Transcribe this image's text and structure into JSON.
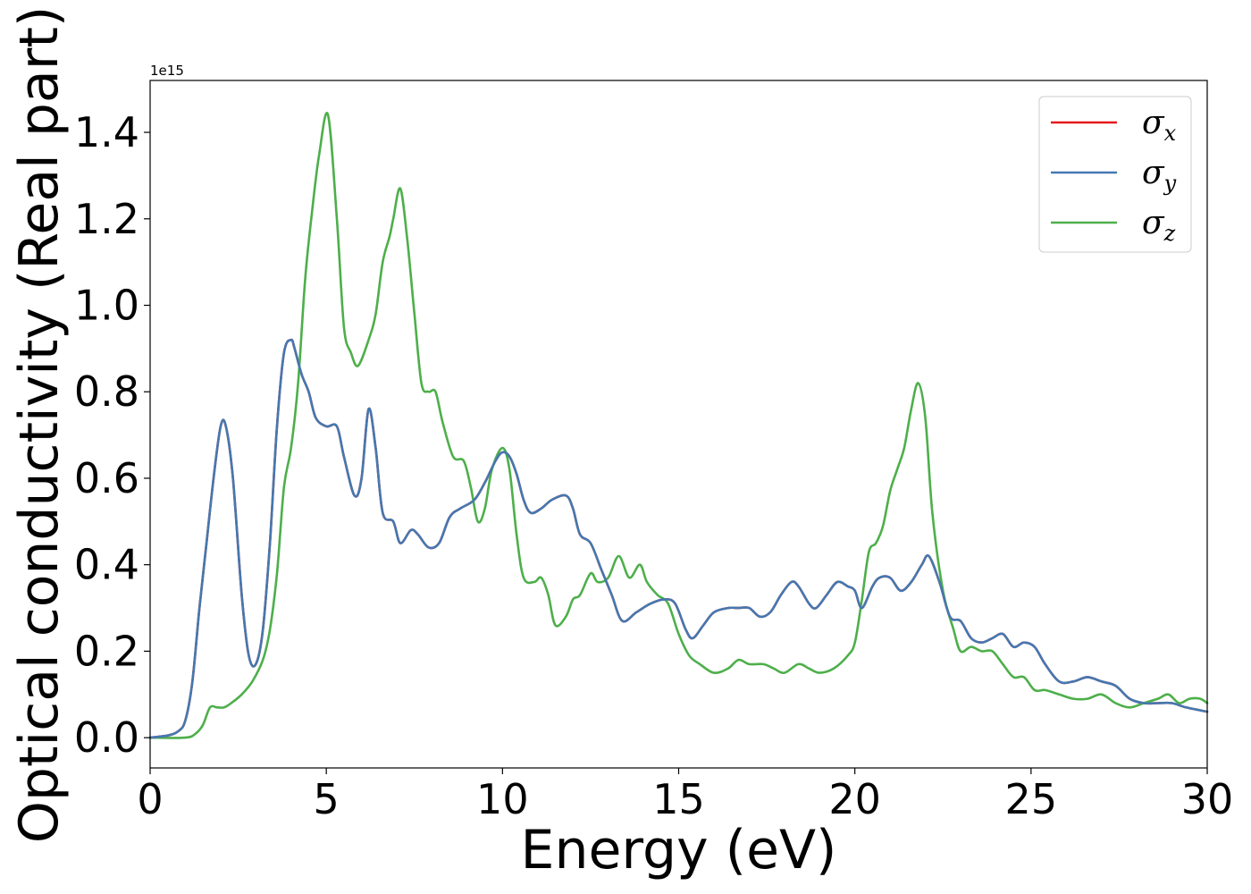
{
  "chart_data": {
    "type": "line",
    "title": "",
    "xlabel": "Energy (eV)",
    "ylabel": "Optical conductivity (Real part)",
    "y_offset_label": "1e15",
    "xlim": [
      0,
      30
    ],
    "ylim": [
      -0.07,
      1.52
    ],
    "xticks": [
      0,
      5,
      10,
      15,
      20,
      25,
      30
    ],
    "xtick_labels": [
      "0",
      "5",
      "10",
      "15",
      "20",
      "25",
      "30"
    ],
    "yticks": [
      0.0,
      0.2,
      0.4,
      0.6,
      0.8,
      1.0,
      1.2,
      1.4
    ],
    "ytick_labels": [
      "0.0",
      "0.2",
      "0.4",
      "0.6",
      "0.8",
      "1.0",
      "1.2",
      "1.4"
    ],
    "grid": false,
    "legend_position": "top-right",
    "series": [
      {
        "name": "σx",
        "symbol": "σ",
        "subscript": "x",
        "color": "#e41a1c",
        "ref": "sigma_xy"
      },
      {
        "name": "σy",
        "symbol": "σ",
        "subscript": "y",
        "color": "#4478b0",
        "x": [
          0,
          0.5,
          0.8,
          1.0,
          1.2,
          1.4,
          1.6,
          1.8,
          2.0,
          2.15,
          2.35,
          2.6,
          2.8,
          3.0,
          3.2,
          3.4,
          3.6,
          3.8,
          4.0,
          4.1,
          4.3,
          4.5,
          4.7,
          5.0,
          5.3,
          5.5,
          5.8,
          6.0,
          6.2,
          6.4,
          6.6,
          6.9,
          7.1,
          7.4,
          7.6,
          7.9,
          8.2,
          8.5,
          8.8,
          9.2,
          9.5,
          9.8,
          10.0,
          10.2,
          10.4,
          10.6,
          10.8,
          11.1,
          11.4,
          11.8,
          12.0,
          12.2,
          12.5,
          12.8,
          13.1,
          13.4,
          13.8,
          14.2,
          14.6,
          14.9,
          15.2,
          15.4,
          15.7,
          16.0,
          16.4,
          16.7,
          17.0,
          17.3,
          17.6,
          17.9,
          18.2,
          18.4,
          18.7,
          18.9,
          19.2,
          19.5,
          19.8,
          20.0,
          20.2,
          20.5,
          20.7,
          21.0,
          21.3,
          21.6,
          21.9,
          22.1,
          22.4,
          22.7,
          23.0,
          23.3,
          23.6,
          23.9,
          24.2,
          24.5,
          24.8,
          25.1,
          25.4,
          25.8,
          26.2,
          26.6,
          27.0,
          27.4,
          27.8,
          28.2,
          28.6,
          29.0,
          29.4,
          30.0
        ],
        "y": [
          0.0,
          0.005,
          0.015,
          0.04,
          0.13,
          0.3,
          0.45,
          0.6,
          0.72,
          0.72,
          0.6,
          0.33,
          0.19,
          0.17,
          0.25,
          0.45,
          0.72,
          0.89,
          0.92,
          0.9,
          0.84,
          0.8,
          0.74,
          0.72,
          0.72,
          0.65,
          0.56,
          0.6,
          0.76,
          0.67,
          0.52,
          0.5,
          0.45,
          0.48,
          0.47,
          0.44,
          0.45,
          0.51,
          0.53,
          0.55,
          0.59,
          0.64,
          0.66,
          0.65,
          0.61,
          0.55,
          0.52,
          0.53,
          0.55,
          0.56,
          0.53,
          0.47,
          0.45,
          0.39,
          0.33,
          0.27,
          0.29,
          0.31,
          0.32,
          0.31,
          0.25,
          0.23,
          0.26,
          0.29,
          0.3,
          0.3,
          0.3,
          0.28,
          0.29,
          0.33,
          0.36,
          0.35,
          0.31,
          0.3,
          0.33,
          0.36,
          0.35,
          0.34,
          0.3,
          0.35,
          0.37,
          0.37,
          0.34,
          0.36,
          0.4,
          0.42,
          0.36,
          0.28,
          0.27,
          0.23,
          0.22,
          0.23,
          0.24,
          0.21,
          0.22,
          0.21,
          0.17,
          0.13,
          0.13,
          0.14,
          0.13,
          0.12,
          0.09,
          0.08,
          0.08,
          0.08,
          0.07,
          0.06
        ]
      },
      {
        "name": "σz",
        "symbol": "σ",
        "subscript": "z",
        "color": "#4daf4a",
        "x": [
          0,
          1.0,
          1.3,
          1.5,
          1.7,
          1.9,
          2.1,
          2.3,
          2.6,
          2.9,
          3.2,
          3.4,
          3.6,
          3.8,
          4.0,
          4.2,
          4.4,
          4.6,
          4.8,
          5.05,
          5.3,
          5.5,
          5.7,
          5.9,
          6.2,
          6.4,
          6.6,
          6.8,
          6.9,
          7.1,
          7.3,
          7.5,
          7.7,
          7.9,
          8.1,
          8.3,
          8.6,
          8.9,
          9.1,
          9.3,
          9.5,
          9.7,
          10.0,
          10.2,
          10.4,
          10.6,
          10.9,
          11.1,
          11.3,
          11.5,
          11.8,
          12.0,
          12.2,
          12.5,
          12.7,
          13.0,
          13.3,
          13.6,
          13.9,
          14.1,
          14.4,
          14.7,
          15.0,
          15.3,
          15.6,
          16.0,
          16.4,
          16.7,
          17.0,
          17.4,
          17.7,
          18.0,
          18.4,
          18.7,
          19.0,
          19.4,
          19.8,
          20.0,
          20.2,
          20.4,
          20.6,
          20.8,
          21.0,
          21.2,
          21.4,
          21.6,
          21.8,
          22.0,
          22.2,
          22.5,
          22.8,
          23.0,
          23.3,
          23.6,
          23.9,
          24.2,
          24.5,
          24.8,
          25.1,
          25.4,
          25.8,
          26.2,
          26.6,
          27.0,
          27.4,
          27.8,
          28.2,
          28.6,
          28.9,
          29.2,
          29.5,
          29.8,
          30.0
        ],
        "y": [
          0.0,
          0.0,
          0.01,
          0.03,
          0.07,
          0.07,
          0.07,
          0.08,
          0.1,
          0.13,
          0.18,
          0.25,
          0.38,
          0.58,
          0.67,
          0.82,
          1.06,
          1.22,
          1.35,
          1.44,
          1.2,
          0.95,
          0.89,
          0.86,
          0.92,
          0.98,
          1.1,
          1.16,
          1.2,
          1.27,
          1.15,
          0.98,
          0.82,
          0.8,
          0.8,
          0.73,
          0.65,
          0.64,
          0.58,
          0.5,
          0.53,
          0.62,
          0.67,
          0.62,
          0.47,
          0.37,
          0.36,
          0.37,
          0.33,
          0.26,
          0.28,
          0.32,
          0.33,
          0.38,
          0.36,
          0.37,
          0.42,
          0.37,
          0.4,
          0.36,
          0.33,
          0.31,
          0.24,
          0.19,
          0.17,
          0.15,
          0.16,
          0.18,
          0.17,
          0.17,
          0.16,
          0.15,
          0.17,
          0.16,
          0.15,
          0.16,
          0.19,
          0.22,
          0.32,
          0.43,
          0.45,
          0.49,
          0.57,
          0.62,
          0.67,
          0.76,
          0.82,
          0.74,
          0.52,
          0.34,
          0.25,
          0.2,
          0.21,
          0.2,
          0.2,
          0.17,
          0.14,
          0.14,
          0.11,
          0.11,
          0.1,
          0.09,
          0.09,
          0.1,
          0.08,
          0.07,
          0.08,
          0.09,
          0.1,
          0.08,
          0.09,
          0.09,
          0.08
        ]
      }
    ]
  }
}
